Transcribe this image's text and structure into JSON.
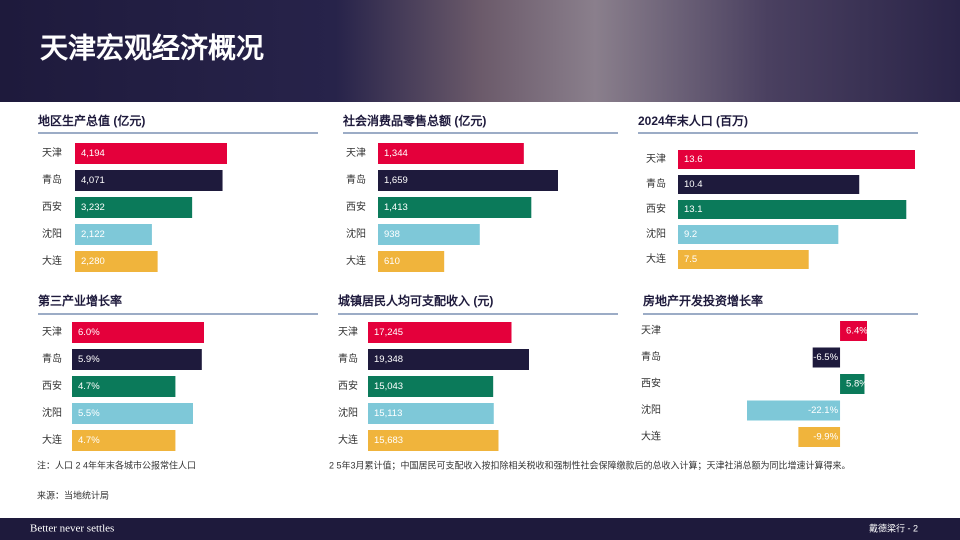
{
  "title": "天津宏观经济概况",
  "chart_data": [
    {
      "type": "bar",
      "title": "地区生产总值 (亿元)",
      "categories": [
        "天津",
        "青岛",
        "西安",
        "沈阳",
        "大连"
      ],
      "values": [
        4194,
        4071,
        3232,
        2122,
        2280
      ],
      "value_labels": [
        "4,194",
        "4,071",
        "3,232",
        "2,122",
        "2,280"
      ],
      "colors": [
        "#e4003b",
        "#1e1a3c",
        "#0b7a5a",
        "#7ec8d8",
        "#f0b43c"
      ]
    },
    {
      "type": "bar",
      "title": "社会消费品零售总额 (亿元)",
      "categories": [
        "天津",
        "青岛",
        "西安",
        "沈阳",
        "大连"
      ],
      "values": [
        1344,
        1659,
        1413,
        938,
        610
      ],
      "value_labels": [
        "1,344",
        "1,659",
        "1,413",
        "938",
        "610"
      ],
      "colors": [
        "#e4003b",
        "#1e1a3c",
        "#0b7a5a",
        "#7ec8d8",
        "#f0b43c"
      ]
    },
    {
      "type": "bar",
      "title": "2024年末人口 (百万)",
      "categories": [
        "天津",
        "青岛",
        "西安",
        "沈阳",
        "大连"
      ],
      "values": [
        13.6,
        10.4,
        13.1,
        9.2,
        7.5
      ],
      "colors": [
        "#e4003b",
        "#1e1a3c",
        "#0b7a5a",
        "#7ec8d8",
        "#f0b43c"
      ]
    },
    {
      "type": "bar",
      "title": "第三产业增长率",
      "categories": [
        "天津",
        "青岛",
        "西安",
        "沈阳",
        "大连"
      ],
      "values": [
        6.0,
        5.9,
        4.7,
        5.5,
        4.7
      ],
      "value_labels": [
        "6.0%",
        "5.9%",
        "4.7%",
        "5.5%",
        "4.7%"
      ],
      "colors": [
        "#e4003b",
        "#1e1a3c",
        "#0b7a5a",
        "#7ec8d8",
        "#f0b43c"
      ]
    },
    {
      "type": "bar",
      "title": "城镇居民人均可支配收入 (元)",
      "categories": [
        "天津",
        "青岛",
        "西安",
        "沈阳",
        "大连"
      ],
      "values": [
        17245,
        19348,
        15043,
        15113,
        15683
      ],
      "value_labels": [
        "17,245",
        "19,348",
        "15,043",
        "15,113",
        "15,683"
      ],
      "colors": [
        "#e4003b",
        "#1e1a3c",
        "#0b7a5a",
        "#7ec8d8",
        "#f0b43c"
      ]
    },
    {
      "type": "bar",
      "title": "房地产开发投资增长率",
      "categories": [
        "天津",
        "青岛",
        "西安",
        "沈阳",
        "大连"
      ],
      "values": [
        6.4,
        -6.5,
        5.8,
        -22.1,
        -9.9
      ],
      "value_labels": [
        "6.4%",
        "-6.5%",
        "5.8%",
        "-22.1%",
        "-9.9%"
      ],
      "colors": [
        "#e4003b",
        "#1e1a3c",
        "#0b7a5a",
        "#7ec8d8",
        "#f0b43c"
      ]
    }
  ],
  "notes": [
    "注：人口 2  4年年末各城市公报常住人口",
    "2  5年3月累计值；中国居民可支配收入按扣除相关税收和强制性社会保障缴款后的总收入计算；天津社消总额为同比增速计算得来。"
  ],
  "source": "来源：当地统计局",
  "footer": {
    "tagline": "Better never settles",
    "page": "戴德梁行 - 2"
  }
}
